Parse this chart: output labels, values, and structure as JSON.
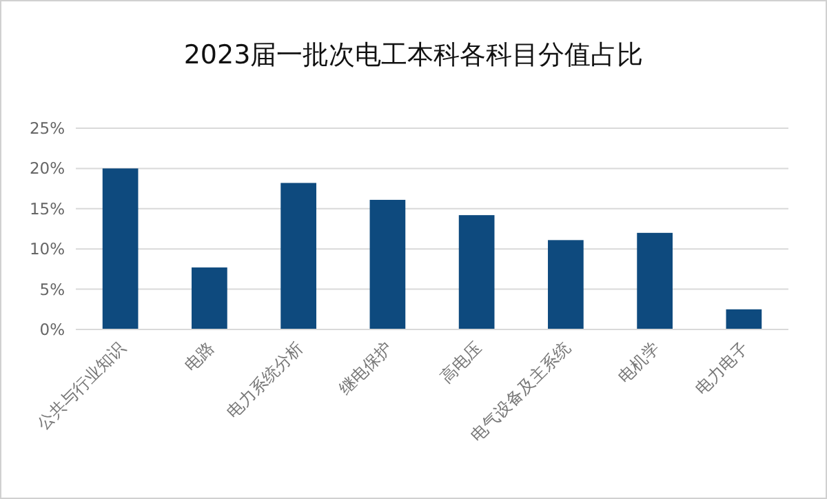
{
  "chart_data": {
    "type": "bar",
    "title": "2023届一批次电工本科各科目分值占比",
    "categories": [
      "公共与行业知识",
      "电路",
      "电力系统分析",
      "继电保护",
      "高电压",
      "电气设备及主系统",
      "电机学",
      "电力电子"
    ],
    "values": [
      20,
      7.7,
      18.2,
      16.1,
      14.2,
      11.1,
      12,
      2.5
    ],
    "color": "#0e4a7e",
    "ylim": [
      0,
      25
    ],
    "yticks": [
      {
        "value": 0,
        "label": "0%"
      },
      {
        "value": 5,
        "label": "5%"
      },
      {
        "value": 10,
        "label": "10%"
      },
      {
        "value": 15,
        "label": "15%"
      },
      {
        "value": 20,
        "label": "20%"
      },
      {
        "value": 25,
        "label": "25%"
      }
    ],
    "grid": "y"
  }
}
